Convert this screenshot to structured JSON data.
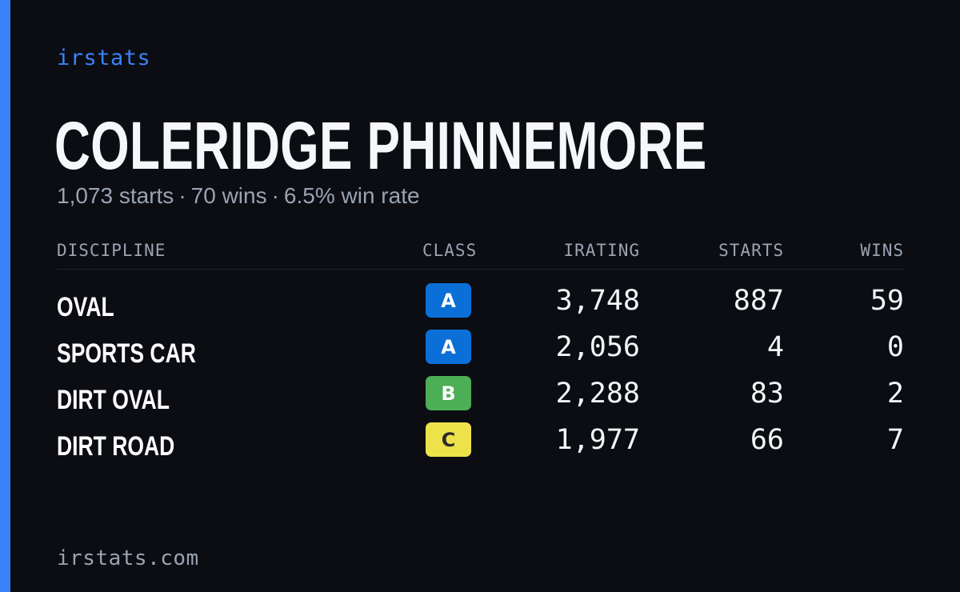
{
  "brand": "irstats",
  "driver": {
    "name": "COLERIDGE PHINNEMORE",
    "starts_text": "1,073 starts",
    "wins_text": "70 wins",
    "win_rate_text": "6.5% win rate",
    "separator": "·"
  },
  "table": {
    "headers": {
      "discipline": "DISCIPLINE",
      "class": "CLASS",
      "irating": "IRATING",
      "starts": "STARTS",
      "wins": "WINS"
    },
    "rows": [
      {
        "discipline": "OVAL",
        "class": "A",
        "class_bg": "#0a6fd6",
        "class_fg": "#ffffff",
        "irating": "3,748",
        "starts": "887",
        "wins": "59"
      },
      {
        "discipline": "SPORTS CAR",
        "class": "A",
        "class_bg": "#0a6fd6",
        "class_fg": "#ffffff",
        "irating": "2,056",
        "starts": "4",
        "wins": "0"
      },
      {
        "discipline": "DIRT OVAL",
        "class": "B",
        "class_bg": "#4cae55",
        "class_fg": "#ffffff",
        "irating": "2,288",
        "starts": "83",
        "wins": "2"
      },
      {
        "discipline": "DIRT ROAD",
        "class": "C",
        "class_bg": "#ede24a",
        "class_fg": "#2b2b2b",
        "irating": "1,977",
        "starts": "66",
        "wins": "7"
      }
    ]
  },
  "footer": {
    "site": "irstats.com"
  },
  "colors": {
    "background": "#0b0d13",
    "accent": "#3b82f6",
    "muted_text": "#9aa3b2"
  }
}
